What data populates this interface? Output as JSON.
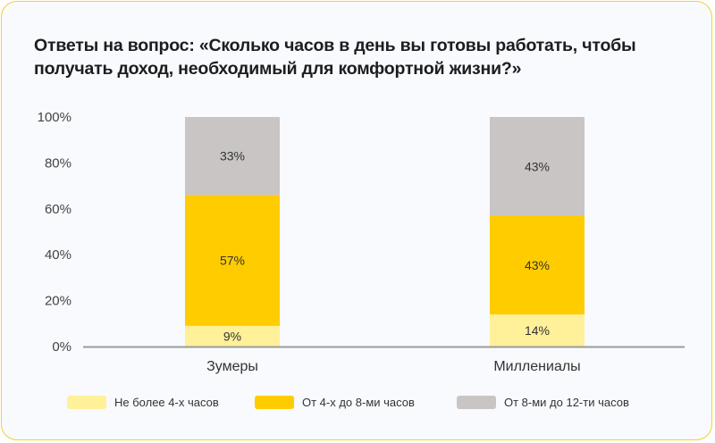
{
  "chart_data": {
    "type": "bar",
    "stacked": true,
    "title": "Ответы на вопрос: «Сколько часов в день вы готовы работать, чтобы получать доход, необходимый для комфортной жизни?»",
    "categories": [
      "Зумеры",
      "Миллениалы"
    ],
    "series": [
      {
        "name": "Не более 4-х часов",
        "color": "#fff09a",
        "values": [
          9,
          14
        ],
        "labels": [
          "9%",
          "14%"
        ]
      },
      {
        "name": "От 4-х до 8-ми часов",
        "color": "#ffcc00",
        "values": [
          57,
          43
        ],
        "labels": [
          "57%",
          "43%"
        ]
      },
      {
        "name": "От 8-ми до 12-ти часов",
        "color": "#c9c5c4",
        "values": [
          33,
          43
        ],
        "labels": [
          "33%",
          "43%"
        ]
      }
    ],
    "yticks": [
      "0%",
      "20%",
      "40%",
      "60%",
      "80%",
      "100%"
    ],
    "ylim": [
      0,
      100
    ],
    "xlabel": "",
    "ylabel": "",
    "grid": false,
    "legend_position": "bottom"
  }
}
